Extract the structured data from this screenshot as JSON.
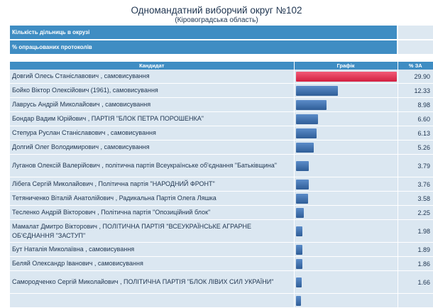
{
  "header": {
    "title": "Одномандатний виборчий округ №102",
    "subtitle": "(Кіровоградська область)"
  },
  "info_rows": [
    {
      "label": "Кількість дільниць в окрузі",
      "value": ""
    },
    {
      "label": "% опрацьованих протоколів",
      "value": ""
    }
  ],
  "results": {
    "columns": {
      "candidate": "Кандидат",
      "graph": "Графік",
      "percent": "% ЗА"
    },
    "bar_colors": {
      "leader": "#e8304f",
      "others": "#3a6aa8"
    },
    "scale_max_percent": 29.9,
    "rows": [
      {
        "name": "Довгий Олесь Станіславович , самовисування",
        "percent": "29.90",
        "value": 29.9
      },
      {
        "name": "Бойко Віктор Олексійович (1961), самовисування",
        "percent": "12.33",
        "value": 12.33
      },
      {
        "name": "Лаврусь Андрій Миколайович , самовисування",
        "percent": "8.98",
        "value": 8.98
      },
      {
        "name": "Бондар Вадим Юрійович , ПАРТІЯ \"БЛОК ПЕТРА ПОРОШЕНКА\"",
        "percent": "6.60",
        "value": 6.6
      },
      {
        "name": "Степура Руслан Станіславович , самовисування",
        "percent": "6.13",
        "value": 6.13
      },
      {
        "name": "Долгий Олег Володимирович , самовисування",
        "percent": "5.26",
        "value": 5.26
      },
      {
        "name": "Луганов Олексій Валерійович , політична партія Всеукраїнське об'єднання \"Батьківщина\"",
        "percent": "3.79",
        "value": 3.79
      },
      {
        "name": "Лібега Сергій Миколайович , Політична партія \"НАРОДНИЙ ФРОНТ\"",
        "percent": "3.76",
        "value": 3.76
      },
      {
        "name": "Тетяниченко Віталій Анатолійович , Радикальна Партія Олега Ляшка",
        "percent": "3.58",
        "value": 3.58
      },
      {
        "name": "Тесленко Андрій Вікторович , Політична партія \"Опозиційний блок\"",
        "percent": "2.25",
        "value": 2.25
      },
      {
        "name": "Мамалат Дмитро Вікторович , ПОЛІТИЧНА ПАРТІЯ \"ВСЕУКРАЇНСЬКЕ АГРАРНЕ ОБ'ЄДНАННЯ \"ЗАСТУП\"",
        "percent": "1.98",
        "value": 1.98
      },
      {
        "name": "Бут Наталія Миколаївна , самовисування",
        "percent": "1.89",
        "value": 1.89
      },
      {
        "name": "Беляй Олександр Іванович , самовисування",
        "percent": "1.86",
        "value": 1.86
      },
      {
        "name": "Самородченко Сергій Миколайович , ПОЛІТИЧНА ПАРТІЯ \"БЛОК ЛІВИХ СИЛ УКРАЇНИ\"",
        "percent": "1.66",
        "value": 1.66
      },
      {
        "name": "",
        "percent": "",
        "value": 1.5
      }
    ]
  }
}
